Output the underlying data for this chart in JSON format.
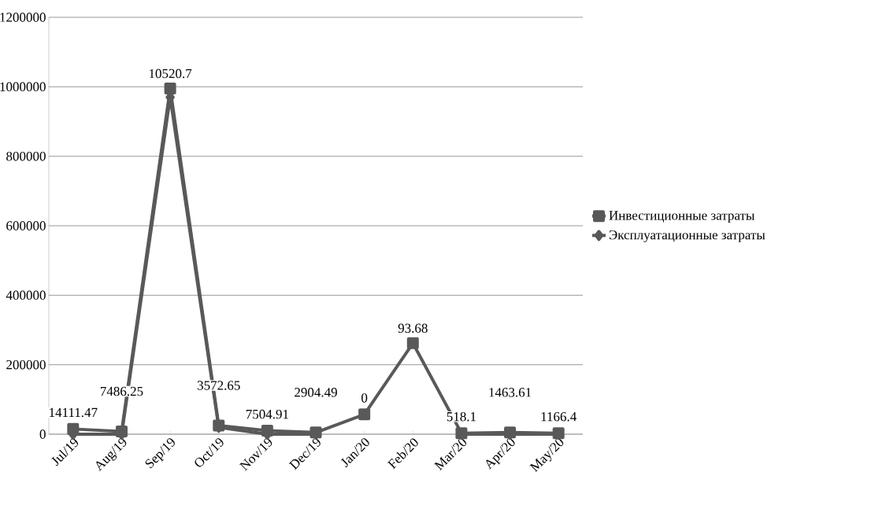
{
  "chart_data": {
    "type": "line",
    "categories": [
      "Jul/19",
      "Aug/19",
      "Sep/19",
      "Oct/19",
      "Nov/19",
      "Dec/19",
      "Jan/20",
      "Feb/20",
      "Mar/20",
      "Apr/20",
      "May/20"
    ],
    "series": [
      {
        "name": "Инвестиционные затраты",
        "color": "#595959",
        "marker": "square",
        "values": [
          15000,
          8000,
          995000,
          25000,
          10000,
          5000,
          57000,
          262000,
          3000,
          5000,
          3000
        ]
      },
      {
        "name": "Эксплуатационные затраты",
        "color": "#595959",
        "marker": "diamond",
        "values": [
          0,
          0,
          970000,
          20000,
          0,
          0,
          null,
          null,
          0,
          0,
          0
        ]
      }
    ],
    "ylim": [
      0,
      1200000
    ],
    "yticks": [
      0,
      200000,
      400000,
      600000,
      800000,
      1000000,
      1200000
    ],
    "grid": "y",
    "legend": "right",
    "line_style": "solid",
    "annotations": [
      "14111.47",
      "7486.25",
      "10520.7",
      "3572.65",
      "7504.91",
      "2904.49",
      "0",
      "93.68",
      "518.1",
      "1463.61",
      "1166.4"
    ]
  }
}
